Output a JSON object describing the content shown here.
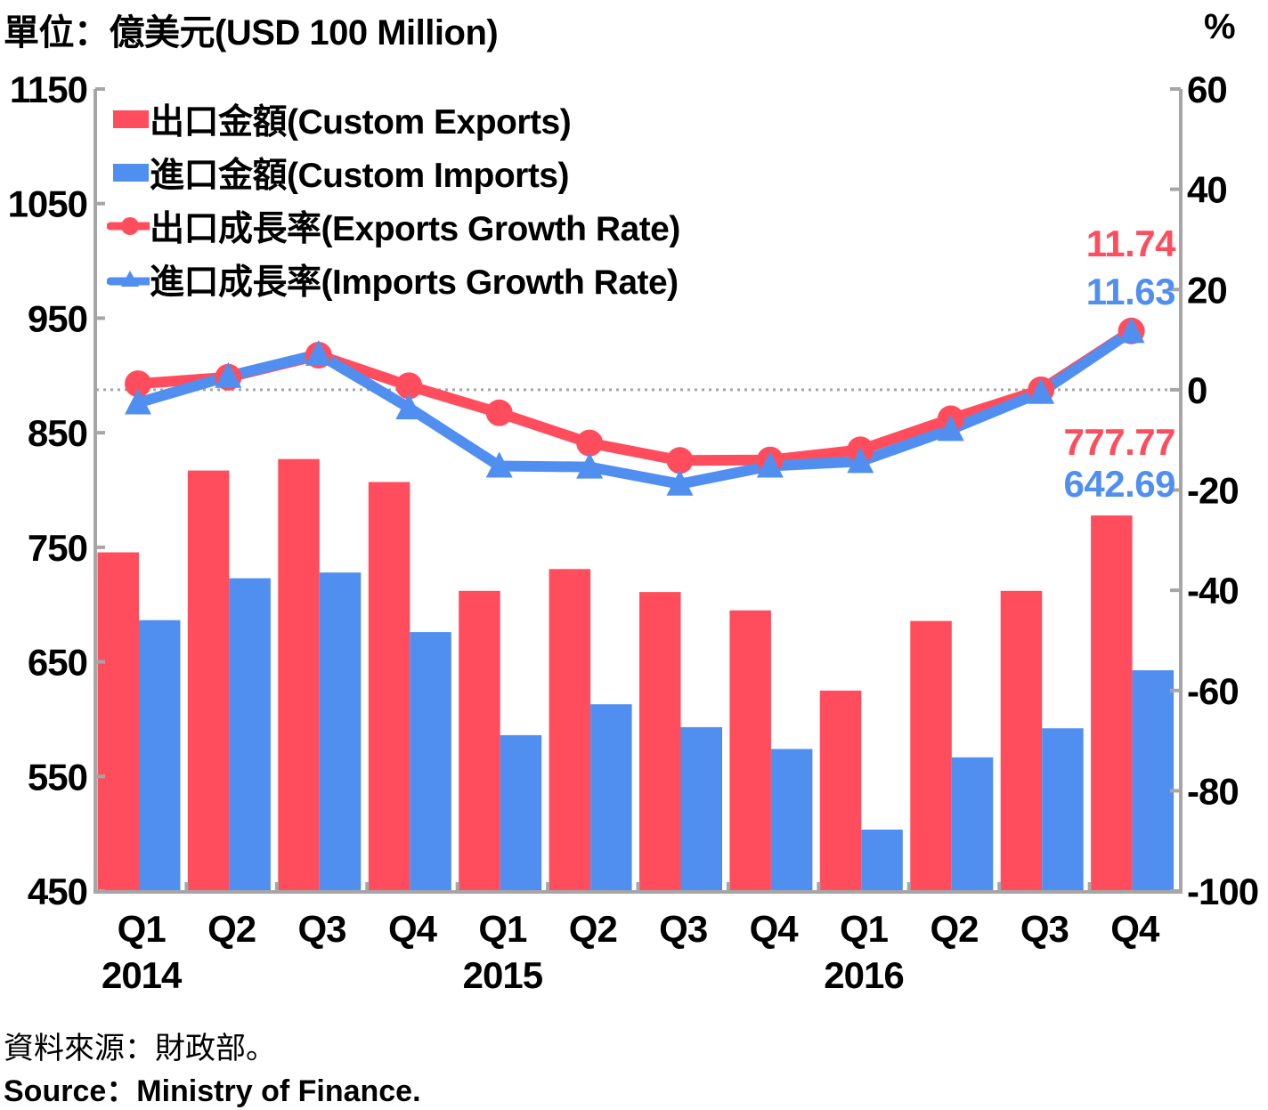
{
  "header": {
    "unit_left": "單位：億美元(USD 100 Million)",
    "unit_right": "%"
  },
  "footer": {
    "source_zh": "資料來源：財政部。",
    "source_en": "Source：Ministry of Finance."
  },
  "colors": {
    "exports": "#ff4d5e",
    "imports": "#508ff0",
    "axis": "#a6a6a6",
    "text": "#000000"
  },
  "chart_data": {
    "type": "bar+line",
    "categories": [
      "Q1",
      "Q2",
      "Q3",
      "Q4",
      "Q1",
      "Q2",
      "Q3",
      "Q4",
      "Q1",
      "Q2",
      "Q3",
      "Q4"
    ],
    "years": [
      {
        "label": "2014",
        "category_index": 0
      },
      {
        "label": "2015",
        "category_index": 4
      },
      {
        "label": "2016",
        "category_index": 8
      }
    ],
    "left_axis": {
      "ylim": [
        450,
        1150
      ],
      "ticks": [
        "450",
        "550",
        "650",
        "750",
        "850",
        "950",
        "1050",
        "1150"
      ],
      "tick_values": [
        450,
        550,
        650,
        750,
        850,
        950,
        1050,
        1150
      ]
    },
    "right_axis": {
      "ylim": [
        -100,
        60
      ],
      "ticks": [
        "-100",
        "-80",
        "-60",
        "-40",
        "-20",
        "0",
        "20",
        "40",
        "60"
      ],
      "tick_values": [
        -100,
        -80,
        -60,
        -40,
        -20,
        0,
        20,
        40,
        60
      ],
      "reference_line": 0
    },
    "series": [
      {
        "name": "出口金額(Custom Exports)",
        "type": "bar",
        "axis": "left",
        "color_key": "exports",
        "values": [
          745.6,
          817.0,
          827.0,
          807.0,
          712.0,
          731.0,
          711.0,
          695.0,
          625.0,
          685.7,
          712.0,
          777.77
        ]
      },
      {
        "name": "進口金額(Custom Imports)",
        "type": "bar",
        "axis": "left",
        "color_key": "imports",
        "values": [
          686.4,
          723.0,
          728.0,
          676.0,
          586.0,
          613.0,
          593.0,
          574.0,
          503.6,
          566.7,
          592.0,
          642.69
        ]
      },
      {
        "name": "出口成長率(Exports Growth Rate)",
        "type": "line",
        "marker": "circle",
        "axis": "right",
        "color_key": "exports",
        "values": [
          1.2,
          2.5,
          6.9,
          0.8,
          -4.6,
          -10.6,
          -14.1,
          -14.0,
          -12.0,
          -5.8,
          0.0,
          11.74
        ]
      },
      {
        "name": "進口成長率(Imports Growth Rate)",
        "type": "line",
        "marker": "triangle",
        "axis": "right",
        "color_key": "imports",
        "values": [
          -2.6,
          2.7,
          7.1,
          -3.6,
          -15.2,
          -15.4,
          -18.8,
          -15.2,
          -14.3,
          -7.9,
          -0.5,
          11.63
        ]
      }
    ],
    "annotations": [
      {
        "text": "11.74",
        "series": 2,
        "category_index": 11
      },
      {
        "text": "11.63",
        "series": 3,
        "category_index": 11
      },
      {
        "text": "777.77",
        "series": 0,
        "category_index": 11
      },
      {
        "text": "642.69",
        "series": 1,
        "category_index": 11
      }
    ],
    "legend_position": "top-left",
    "grid": false
  }
}
